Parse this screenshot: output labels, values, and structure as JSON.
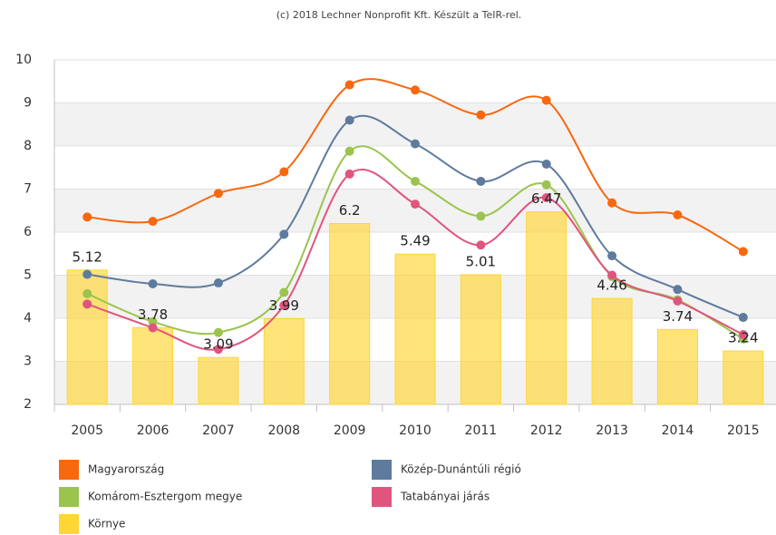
{
  "chart_data": {
    "type": "combo",
    "credits": "(c) 2018 Lechner Nonprofit Kft. Készült a TeIR-rel.",
    "categories": [
      "2005",
      "2006",
      "2007",
      "2008",
      "2009",
      "2010",
      "2011",
      "2012",
      "2013",
      "2014",
      "2015"
    ],
    "ylim": [
      2,
      10
    ],
    "yticks": [
      2,
      3,
      4,
      5,
      6,
      7,
      8,
      9,
      10
    ],
    "grid": true,
    "alternate_grid_color": "#f2f2f2",
    "smooth": true,
    "series": [
      {
        "name": "Környe",
        "type": "bar",
        "color": "#ffd633",
        "values": [
          5.12,
          3.78,
          3.09,
          3.99,
          6.2,
          5.49,
          5.01,
          6.47,
          4.46,
          3.74,
          3.24
        ]
      },
      {
        "name": "Magyarország",
        "type": "line",
        "color": "#f7680f",
        "values": [
          6.35,
          6.25,
          6.9,
          7.4,
          9.42,
          9.3,
          8.72,
          9.06,
          6.68,
          6.4,
          5.55
        ]
      },
      {
        "name": "Közép-Dunántúli régió",
        "type": "line",
        "color": "#5e7b9e",
        "values": [
          5.02,
          4.8,
          4.82,
          5.95,
          8.6,
          8.05,
          7.18,
          7.58,
          5.45,
          4.67,
          4.02
        ]
      },
      {
        "name": "Komárom-Esztergom megye",
        "type": "line",
        "color": "#9ac44e",
        "values": [
          4.57,
          3.92,
          3.67,
          4.6,
          7.88,
          7.18,
          6.37,
          7.1,
          4.97,
          4.43,
          3.52
        ]
      },
      {
        "name": "Tatabányai járás",
        "type": "line",
        "color": "#e0557e",
        "values": [
          4.33,
          3.78,
          3.28,
          4.3,
          7.35,
          6.65,
          5.7,
          6.8,
          5.0,
          4.4,
          3.62
        ]
      }
    ],
    "legend_order": [
      1,
      2,
      3,
      4,
      0
    ]
  }
}
